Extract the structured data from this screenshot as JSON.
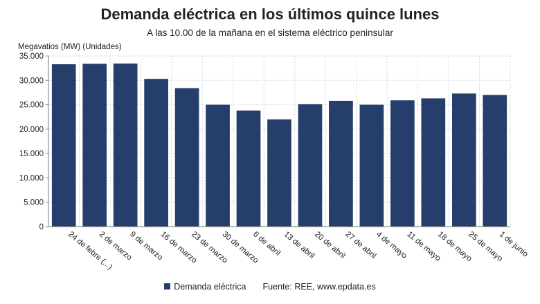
{
  "chart_data": {
    "type": "bar",
    "title": "Demanda eléctrica en los últimos quince lunes",
    "subtitle": "A las 10.00 de la mañana en el sistema eléctrico peninsular",
    "ylabel": "Megavatios (MW) (Unidades)",
    "categories": [
      "24 de febre (...)",
      "2 de marzo",
      "9 de marzo",
      "16 de marzo",
      "23 de marzo",
      "30 de marzo",
      "6 de abril",
      "13 de abril",
      "20 de abril",
      "27 de abril",
      "4 de mayo",
      "11 de mayo",
      "18 de mayo",
      "25 de mayo",
      "1 de junio"
    ],
    "series": [
      {
        "name": "Demanda eléctrica",
        "values": [
          33300,
          33400,
          33450,
          30300,
          28400,
          25000,
          23800,
          22000,
          25100,
          25800,
          25000,
          25900,
          26300,
          27300,
          27000
        ]
      }
    ],
    "ylim": [
      0,
      35000
    ],
    "yticks": [
      "0",
      "5.000",
      "10.000",
      "15.000",
      "20.000",
      "25.000",
      "30.000",
      "35.000"
    ],
    "grid": true,
    "legend": "bottom",
    "bar_color": "#263e6b",
    "source": "Fuente: REE, www.epdata.es"
  }
}
